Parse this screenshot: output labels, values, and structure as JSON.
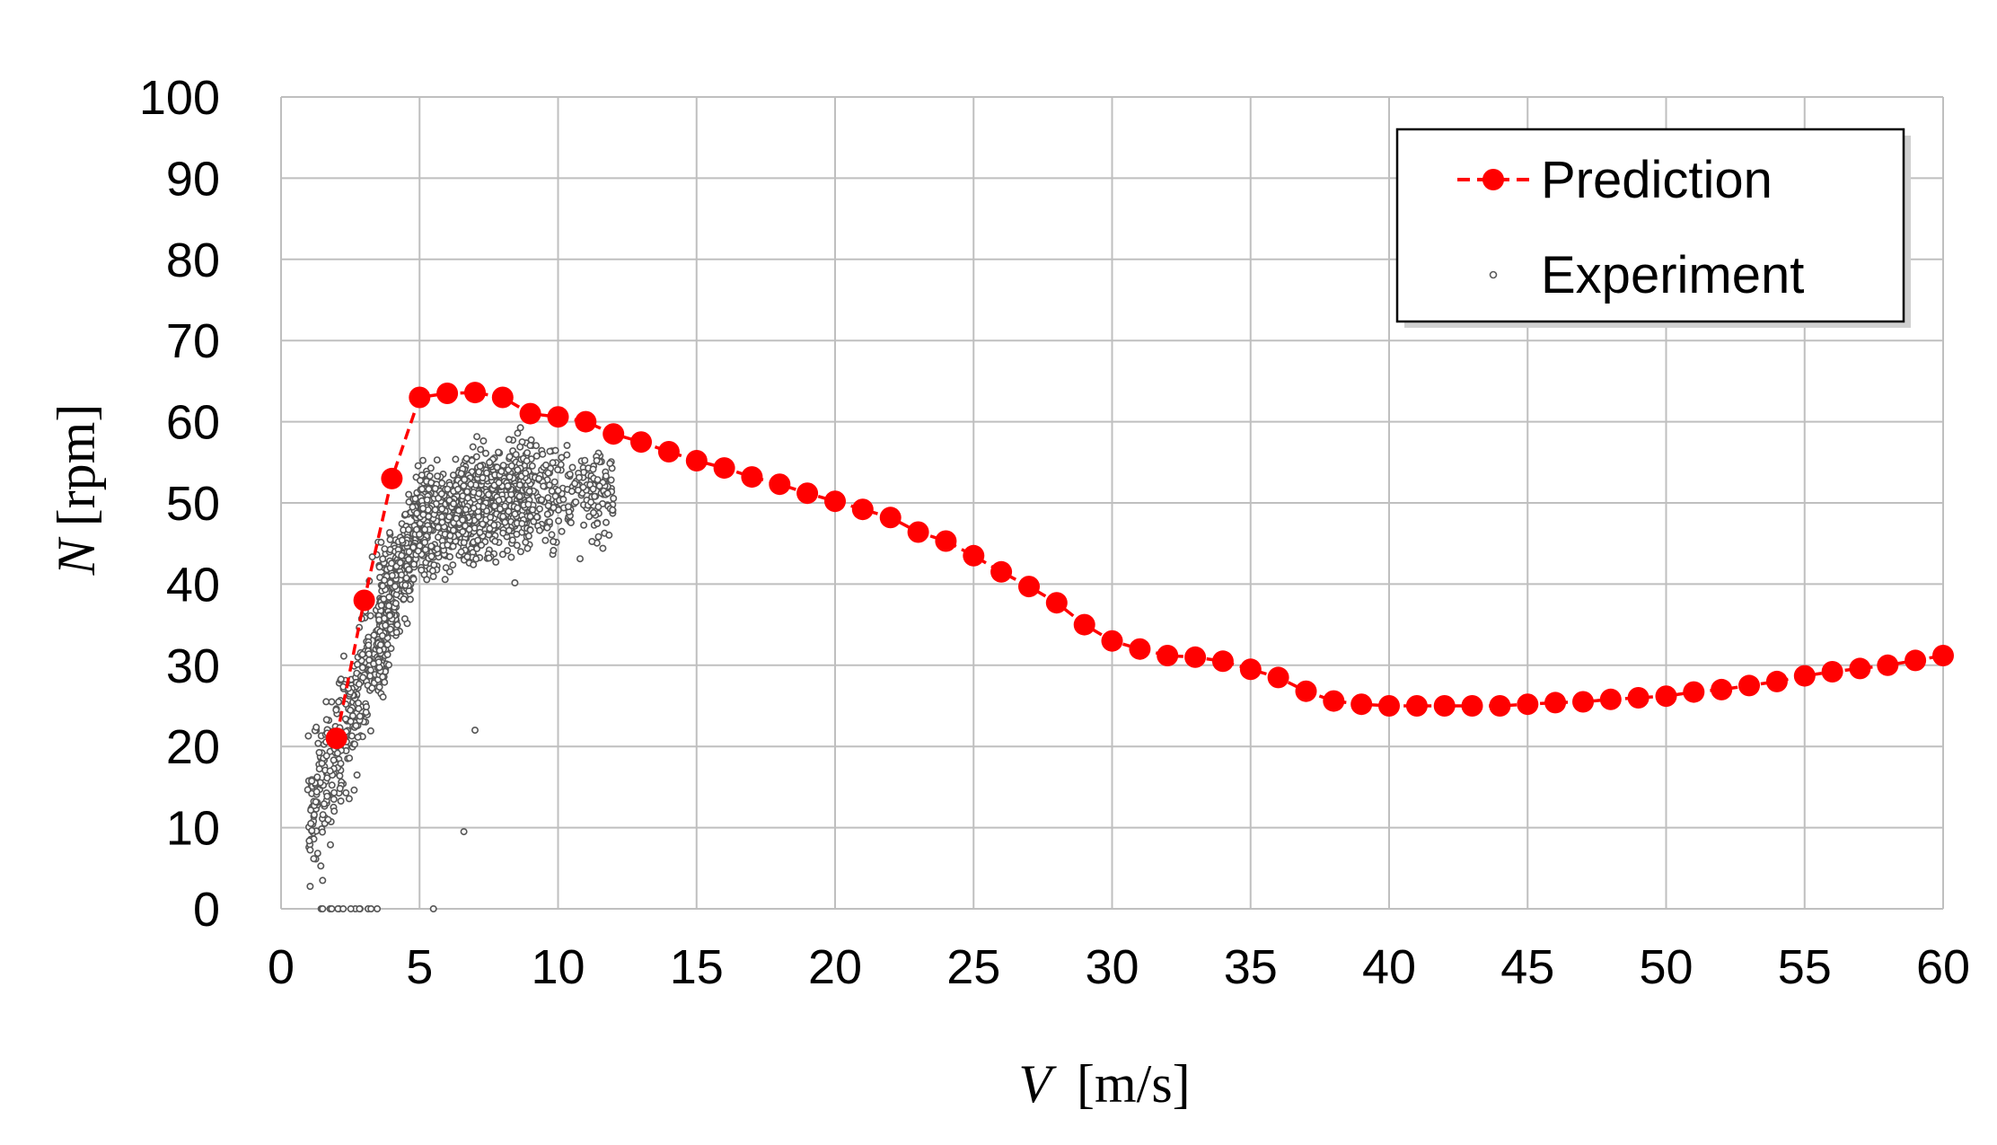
{
  "chart_data": {
    "type": "scatter",
    "xlabel_var": "V",
    "xlabel_unit": "[m/s]",
    "ylabel_var": "N",
    "ylabel_unit": "[rpm]",
    "xlim": [
      0,
      60
    ],
    "ylim": [
      0,
      100
    ],
    "x_ticks": [
      0,
      5,
      10,
      15,
      20,
      25,
      30,
      35,
      40,
      45,
      50,
      55,
      60
    ],
    "y_ticks": [
      0,
      10,
      20,
      30,
      40,
      50,
      60,
      70,
      80,
      90,
      100
    ],
    "grid": true,
    "legend_position": "top-right",
    "colors": {
      "prediction": "#ff0000",
      "experiment": "#7f7f7f",
      "grid": "#bfbfbf"
    },
    "series": [
      {
        "name": "Prediction",
        "style": "dashed line with filled circle markers",
        "x": [
          2,
          3,
          4,
          5,
          6,
          7,
          8,
          9,
          10,
          11,
          12,
          13,
          14,
          15,
          16,
          17,
          18,
          19,
          20,
          21,
          22,
          23,
          24,
          25,
          26,
          27,
          28,
          29,
          30,
          31,
          32,
          33,
          34,
          35,
          36,
          37,
          38,
          39,
          40,
          41,
          42,
          43,
          44,
          45,
          46,
          47,
          48,
          49,
          50,
          51,
          52,
          53,
          54,
          55,
          56,
          57,
          58,
          59,
          60
        ],
        "y": [
          21,
          38,
          53,
          63,
          63.5,
          63.6,
          63,
          61,
          60.6,
          60,
          58.5,
          57.5,
          56.3,
          55.2,
          54.3,
          53.2,
          52.3,
          51.2,
          50.2,
          49.2,
          48.2,
          46.4,
          45.3,
          43.5,
          41.5,
          39.7,
          37.7,
          35,
          33,
          32,
          31.2,
          31,
          30.5,
          29.5,
          28.5,
          26.8,
          25.6,
          25.2,
          25,
          25,
          25,
          25,
          25,
          25.2,
          25.4,
          25.5,
          25.8,
          26,
          26.2,
          26.7,
          27,
          27.5,
          28,
          28.7,
          29.2,
          29.6,
          30,
          30.6,
          31.2
        ]
      },
      {
        "name": "Experiment",
        "style": "small hollow circle markers",
        "cloud_summary": "dense scatter of roughly 2000 points between V = 1 and 12 m/s, N rising from 0–30 rpm at V ≈ 1–3 m/s to about 45–55 rpm at V ≈ 5–12 m/s",
        "x_range": [
          1,
          12
        ],
        "y_range": [
          0,
          62
        ]
      }
    ]
  }
}
